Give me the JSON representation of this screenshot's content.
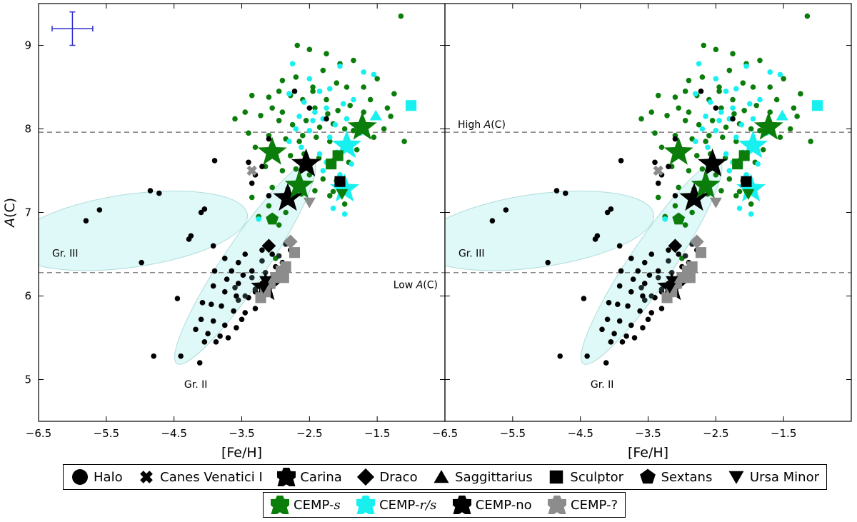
{
  "chart_data": {
    "type": "scatter",
    "panels": [
      {
        "name": "left",
        "xlim": [
          -6.5,
          -0.5
        ],
        "ylim": [
          4.5,
          9.5
        ],
        "show_ylabel": true,
        "show_error_bar": true,
        "show_high_label": false,
        "show_low_label": true
      },
      {
        "name": "right",
        "xlim": [
          -6.5,
          -0.5
        ],
        "ylim": [
          4.5,
          9.5
        ],
        "show_ylabel": false,
        "show_error_bar": false,
        "show_high_label": true,
        "show_low_label": false
      }
    ],
    "xlabel": "[Fe/H]",
    "ylabel": "A(C)",
    "ylabel_main": "A",
    "ylabel_sub": "(C)",
    "xticks": [
      -6.5,
      -5.5,
      -4.5,
      -3.5,
      -2.5,
      -1.5
    ],
    "xtick_labels": [
      "−6.5",
      "−5.5",
      "−4.5",
      "−3.5",
      "−2.5",
      "−1.5"
    ],
    "yticks": [
      5,
      6,
      7,
      8,
      9
    ],
    "ytick_labels": [
      "5",
      "6",
      "7",
      "8",
      "9"
    ],
    "error_bar": {
      "x": -6.0,
      "y": 9.2,
      "dx": 0.3,
      "dy": 0.2
    },
    "hlines": [
      {
        "y": 7.96,
        "label_main": "High ",
        "label_italic": "A",
        "label_rest": "(C)"
      },
      {
        "y": 6.28,
        "label_main": "Low ",
        "label_italic": "A",
        "label_rest": "(C)"
      }
    ],
    "group_regions": [
      {
        "label": "Gr. II",
        "cx": -3.45,
        "cy": 6.4,
        "a": 1.8,
        "b": 0.32,
        "angle": 56,
        "label_x": -4.35,
        "label_y": 4.9
      },
      {
        "label": "Gr. III",
        "cx": -5.15,
        "cy": 6.78,
        "a": 1.75,
        "b": 0.54,
        "angle": 8,
        "label_x": -6.3,
        "label_y": 6.47
      }
    ],
    "colors": {
      "cemp_s": "#0b7d0b",
      "cemp_rs": "#18f0f0",
      "cemp_no": "#000000",
      "cemp_unknown": "#8c8c8c",
      "dark_gray": "#1e2b2b",
      "region_fill": "#d9f7f7",
      "hline": "#888888",
      "error_bar": "#2c2ccc"
    },
    "halo_points": {
      "cemp_s": [
        [
          -1.15,
          9.35
        ],
        [
          -2.68,
          9.0
        ],
        [
          -2.5,
          8.95
        ],
        [
          -2.25,
          8.9
        ],
        [
          -2.05,
          8.78
        ],
        [
          -1.85,
          8.82
        ],
        [
          -2.9,
          8.58
        ],
        [
          -2.7,
          8.62
        ],
        [
          -2.3,
          8.7
        ],
        [
          -2.1,
          8.55
        ],
        [
          -1.95,
          8.5
        ],
        [
          -2.45,
          8.45
        ],
        [
          -1.7,
          8.5
        ],
        [
          -1.6,
          8.35
        ],
        [
          -1.25,
          8.42
        ],
        [
          -1.3,
          8.15
        ],
        [
          -1.4,
          8.0
        ],
        [
          -1.1,
          7.85
        ],
        [
          -1.55,
          7.9
        ],
        [
          -3.35,
          8.4
        ],
        [
          -3.1,
          8.38
        ],
        [
          -2.95,
          8.45
        ],
        [
          -2.78,
          8.4
        ],
        [
          -2.6,
          8.35
        ],
        [
          -2.42,
          8.25
        ],
        [
          -2.23,
          8.18
        ],
        [
          -2.08,
          8.22
        ],
        [
          -1.9,
          8.28
        ],
        [
          -3.6,
          8.12
        ],
        [
          -3.22,
          8.16
        ],
        [
          -2.95,
          8.1
        ],
        [
          -2.75,
          8.05
        ],
        [
          -2.55,
          8.1
        ],
        [
          -2.35,
          8.02
        ],
        [
          -2.15,
          8.06
        ],
        [
          -1.98,
          8.0
        ],
        [
          -1.85,
          7.98
        ],
        [
          -3.4,
          7.95
        ],
        [
          -3.1,
          7.92
        ],
        [
          -2.85,
          7.88
        ],
        [
          -2.65,
          7.85
        ],
        [
          -2.4,
          7.9
        ],
        [
          -2.2,
          7.85
        ],
        [
          -2.0,
          7.82
        ],
        [
          -1.8,
          7.75
        ],
        [
          -3.3,
          7.78
        ],
        [
          -3.0,
          7.72
        ],
        [
          -2.78,
          7.68
        ],
        [
          -2.58,
          7.7
        ],
        [
          -2.36,
          7.65
        ],
        [
          -2.15,
          7.62
        ],
        [
          -1.92,
          7.6
        ],
        [
          -3.15,
          7.55
        ],
        [
          -2.9,
          7.5
        ],
        [
          -2.7,
          7.52
        ],
        [
          -2.5,
          7.45
        ],
        [
          -2.3,
          7.4
        ],
        [
          -2.1,
          7.38
        ],
        [
          -3.05,
          7.3
        ],
        [
          -2.82,
          7.28
        ],
        [
          -2.62,
          7.22
        ],
        [
          -2.42,
          7.26
        ],
        [
          -2.2,
          7.2
        ],
        [
          -1.98,
          7.1
        ],
        [
          -3.35,
          7.18
        ],
        [
          -3.1,
          7.08
        ],
        [
          -2.85,
          7.0
        ],
        [
          -3.25,
          6.95
        ],
        [
          -2.95,
          6.85
        ],
        [
          -2.15,
          7.25
        ],
        [
          -3.05,
          8.25
        ],
        [
          -2.45,
          8.5
        ],
        [
          -2.9,
          8.2
        ],
        [
          -2.6,
          7.92
        ],
        [
          -1.7,
          8.2
        ],
        [
          -1.5,
          8.6
        ],
        [
          -1.35,
          8.25
        ],
        [
          -2.25,
          8.35
        ],
        [
          -3.45,
          8.2
        ],
        [
          -3.0,
          6.45
        ]
      ],
      "cemp_rs": [
        [
          -2.75,
          8.78
        ],
        [
          -2.05,
          8.75
        ],
        [
          -1.7,
          8.68
        ],
        [
          -1.55,
          8.65
        ],
        [
          -2.5,
          8.6
        ],
        [
          -2.8,
          8.42
        ],
        [
          -2.35,
          8.45
        ],
        [
          -2.2,
          8.48
        ],
        [
          -2.58,
          8.32
        ],
        [
          -2.25,
          8.25
        ],
        [
          -2.0,
          8.3
        ],
        [
          -1.85,
          8.35
        ],
        [
          -2.65,
          8.15
        ],
        [
          -2.45,
          8.1
        ],
        [
          -2.3,
          8.12
        ],
        [
          -2.12,
          8.05
        ],
        [
          -1.95,
          8.12
        ],
        [
          -1.75,
          7.95
        ],
        [
          -2.5,
          7.98
        ],
        [
          -2.2,
          7.9
        ],
        [
          -2.62,
          7.78
        ],
        [
          -2.35,
          7.7
        ],
        [
          -2.1,
          7.72
        ],
        [
          -1.88,
          7.58
        ],
        [
          -2.55,
          7.6
        ],
        [
          -2.3,
          7.5
        ],
        [
          -2.05,
          7.45
        ],
        [
          -1.98,
          6.98
        ],
        [
          -2.15,
          7.05
        ],
        [
          -2.42,
          8.2
        ],
        [
          -2.7,
          8.0
        ],
        [
          -2.25,
          7.6
        ],
        [
          -2.8,
          7.85
        ],
        [
          -3.25,
          6.92
        ]
      ],
      "cemp_no": [
        [
          -3.4,
          7.6
        ],
        [
          -3.9,
          7.62
        ],
        [
          -3.2,
          7.55
        ],
        [
          -2.72,
          8.45
        ],
        [
          -2.5,
          8.25
        ],
        [
          -2.25,
          8.12
        ],
        [
          -3.1,
          7.88
        ],
        [
          -4.85,
          7.26
        ],
        [
          -4.72,
          7.23
        ],
        [
          -3.3,
          7.45
        ],
        [
          -3.35,
          7.35
        ],
        [
          -3.1,
          7.2
        ],
        [
          -4.1,
          7.0
        ],
        [
          -4.05,
          7.04
        ],
        [
          -5.6,
          7.03
        ],
        [
          -5.8,
          6.9
        ],
        [
          -4.28,
          6.68
        ],
        [
          -4.25,
          6.72
        ],
        [
          -3.92,
          6.6
        ],
        [
          -3.75,
          6.45
        ],
        [
          -3.55,
          6.4
        ],
        [
          -3.45,
          6.5
        ],
        [
          -3.2,
          6.55
        ],
        [
          -3.05,
          6.5
        ],
        [
          -2.9,
          6.4
        ],
        [
          -2.78,
          6.55
        ],
        [
          -3.65,
          6.3
        ],
        [
          -3.48,
          6.25
        ],
        [
          -3.35,
          6.3
        ],
        [
          -3.2,
          6.15
        ],
        [
          -3.05,
          6.2
        ],
        [
          -3.92,
          6.12
        ],
        [
          -3.75,
          6.05
        ],
        [
          -3.58,
          6.0
        ],
        [
          -3.4,
          5.98
        ],
        [
          -3.25,
          5.95
        ],
        [
          -4.08,
          5.92
        ],
        [
          -3.95,
          5.9
        ],
        [
          -3.8,
          5.88
        ],
        [
          -3.62,
          5.82
        ],
        [
          -3.45,
          5.8
        ],
        [
          -3.3,
          5.85
        ],
        [
          -4.1,
          5.72
        ],
        [
          -3.92,
          5.7
        ],
        [
          -3.75,
          5.65
        ],
        [
          -3.58,
          5.62
        ],
        [
          -4.18,
          5.6
        ],
        [
          -4.0,
          5.55
        ],
        [
          -3.82,
          5.52
        ],
        [
          -4.05,
          5.45
        ],
        [
          -3.88,
          5.45
        ],
        [
          -3.7,
          5.5
        ],
        [
          -4.45,
          5.97
        ],
        [
          -4.8,
          5.28
        ],
        [
          -4.4,
          5.28
        ],
        [
          -4.12,
          5.2
        ],
        [
          -4.98,
          6.4
        ],
        [
          -3.5,
          5.72
        ],
        [
          -3.3,
          6.05
        ],
        [
          -3.1,
          6.1
        ],
        [
          -3.55,
          6.15
        ],
        [
          -3.72,
          6.2
        ],
        [
          -3.9,
          6.3
        ],
        [
          -3.0,
          6.35
        ]
      ],
      "dark_gray": [
        [
          -3.45,
          6.0
        ],
        [
          -3.55,
          5.95
        ],
        [
          -3.3,
          6.08
        ],
        [
          -3.15,
          6.28
        ],
        [
          -2.95,
          6.48
        ],
        [
          -3.35,
          6.22
        ],
        [
          -3.6,
          6.1
        ],
        [
          -3.2,
          6.42
        ],
        [
          -2.85,
          6.62
        ],
        [
          -3.05,
          6.18
        ]
      ]
    },
    "dwarf_stars": [
      {
        "galaxy": "Canes Venatici I",
        "marker": "x",
        "class": "cemp_unknown",
        "x": -3.35,
        "y": 7.5
      },
      {
        "galaxy": "Carina",
        "marker": "star",
        "class": "cemp_s",
        "x": -3.05,
        "y": 7.72
      },
      {
        "galaxy": "Carina",
        "marker": "star",
        "class": "cemp_no",
        "x": -2.55,
        "y": 7.58
      },
      {
        "galaxy": "Carina",
        "marker": "star",
        "class": "cemp_no",
        "x": -2.82,
        "y": 7.17
      },
      {
        "galaxy": "Carina",
        "marker": "star",
        "class": "cemp_s",
        "x": -2.65,
        "y": 7.32
      },
      {
        "galaxy": "Carina",
        "marker": "star",
        "class": "cemp_rs",
        "x": -1.95,
        "y": 7.8
      },
      {
        "galaxy": "Carina",
        "marker": "star",
        "class": "cemp_rs",
        "x": -1.98,
        "y": 7.28
      },
      {
        "galaxy": "Carina",
        "marker": "star",
        "class": "cemp_s",
        "x": -1.72,
        "y": 8.02
      },
      {
        "galaxy": "Carina",
        "marker": "star",
        "class": "cemp_no",
        "x": -3.15,
        "y": 6.1
      },
      {
        "galaxy": "Saggittarius",
        "marker": "triangle",
        "class": "cemp_rs",
        "x": -1.52,
        "y": 8.16
      },
      {
        "galaxy": "Sculptor",
        "marker": "square",
        "class": "cemp_rs",
        "x": -1.0,
        "y": 8.28
      },
      {
        "galaxy": "Sculptor",
        "marker": "square",
        "class": "cemp_s",
        "x": -2.18,
        "y": 7.58
      },
      {
        "galaxy": "Sculptor",
        "marker": "square",
        "class": "cemp_s",
        "x": -2.08,
        "y": 7.68
      },
      {
        "galaxy": "Sculptor",
        "marker": "square",
        "class": "cemp_no",
        "x": -2.05,
        "y": 7.37
      },
      {
        "galaxy": "Sculptor",
        "marker": "square",
        "class": "cemp_unknown",
        "x": -2.72,
        "y": 6.52
      },
      {
        "galaxy": "Sculptor",
        "marker": "square",
        "class": "cemp_unknown",
        "x": -2.85,
        "y": 6.35
      },
      {
        "galaxy": "Sculptor",
        "marker": "square",
        "class": "cemp_unknown",
        "x": -2.92,
        "y": 6.3
      },
      {
        "galaxy": "Sculptor",
        "marker": "square",
        "class": "cemp_unknown",
        "x": -3.0,
        "y": 6.22
      },
      {
        "galaxy": "Sculptor",
        "marker": "square",
        "class": "cemp_unknown",
        "x": -3.08,
        "y": 6.15
      },
      {
        "galaxy": "Sculptor",
        "marker": "square",
        "class": "cemp_unknown",
        "x": -3.15,
        "y": 6.05
      },
      {
        "galaxy": "Sculptor",
        "marker": "square",
        "class": "cemp_unknown",
        "x": -3.22,
        "y": 5.98
      },
      {
        "galaxy": "Sculptor",
        "marker": "square",
        "class": "cemp_unknown",
        "x": -2.88,
        "y": 6.22
      },
      {
        "galaxy": "Draco",
        "marker": "diamond",
        "class": "cemp_no",
        "x": -3.1,
        "y": 6.6
      },
      {
        "galaxy": "Draco",
        "marker": "diamond",
        "class": "cemp_unknown",
        "x": -2.78,
        "y": 6.65
      },
      {
        "galaxy": "Sextans",
        "marker": "pentagon",
        "class": "cemp_s",
        "x": -3.05,
        "y": 6.92
      },
      {
        "galaxy": "Ursa Minor",
        "marker": "triangle-down",
        "class": "cemp_unknown",
        "x": -2.5,
        "y": 7.12
      },
      {
        "galaxy": "Ursa Minor",
        "marker": "triangle-down",
        "class": "cemp_s",
        "x": -2.02,
        "y": 7.22
      },
      {
        "galaxy": "Ursa Minor",
        "marker": "triangle-down",
        "class": "cemp_no",
        "x": -3.15,
        "y": 6.18
      },
      {
        "galaxy": "Ursa Minor",
        "marker": "triangle-down",
        "class": "cemp_no",
        "x": -3.18,
        "y": 6.1
      }
    ],
    "legend_galaxies": [
      {
        "label": "Halo",
        "marker": "circle"
      },
      {
        "label": "Canes Venatici I",
        "marker": "x"
      },
      {
        "label": "Carina",
        "marker": "star"
      },
      {
        "label": "Draco",
        "marker": "diamond"
      },
      {
        "label": "Saggittarius",
        "marker": "triangle"
      },
      {
        "label": "Sculptor",
        "marker": "square"
      },
      {
        "label": "Sextans",
        "marker": "pentagon"
      },
      {
        "label": "Ursa Minor",
        "marker": "triangle-down"
      }
    ],
    "legend_classes": [
      {
        "label_main": "CEMP-",
        "label_italic": "s",
        "class": "cemp_s"
      },
      {
        "label_main": "CEMP-",
        "label_italic": "r/s",
        "class": "cemp_rs"
      },
      {
        "label_main": "CEMP-no",
        "label_italic": "",
        "class": "cemp_no"
      },
      {
        "label_main": "CEMP-?",
        "label_italic": "",
        "class": "cemp_unknown"
      }
    ]
  }
}
